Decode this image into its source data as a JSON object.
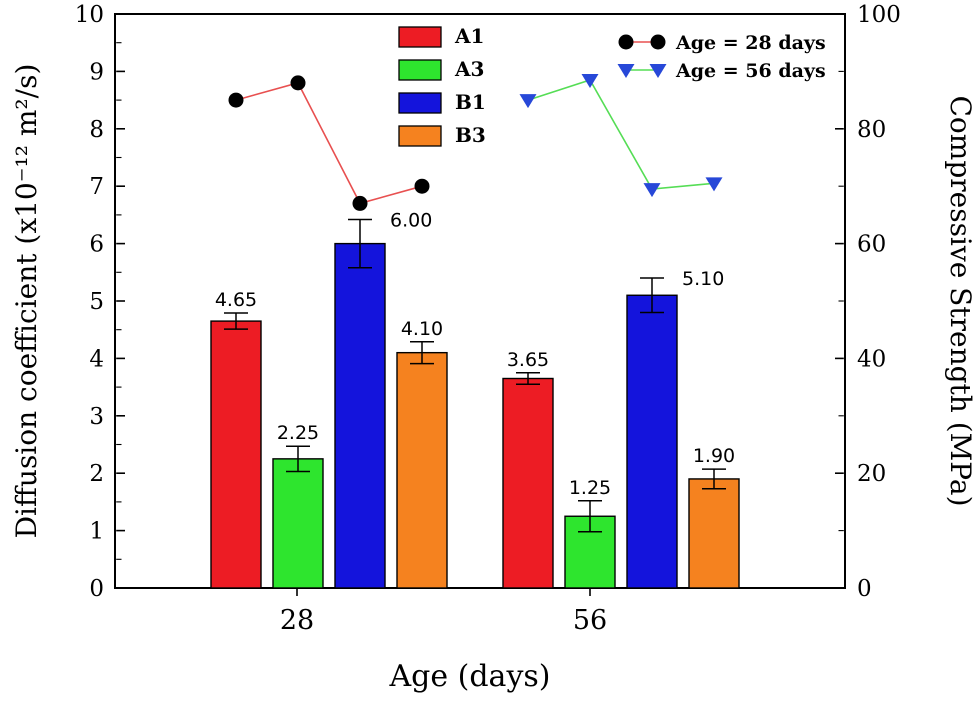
{
  "chart_data": {
    "type": "bar",
    "title": "",
    "xlabel": "Age (days)",
    "axes": {
      "left": {
        "label": "Diffusion coefficient (x10⁻¹² m²/s)",
        "min": 0,
        "max": 10,
        "tick_step": 1,
        "minor_step": 0.5
      },
      "right": {
        "label": "Compressive Strength (MPa)",
        "min": 0,
        "max": 100,
        "tick_step": 10,
        "label_step": 20
      },
      "x": {
        "categories": [
          "28",
          "56"
        ]
      }
    },
    "bar_series": [
      {
        "name": "A1",
        "color": "#ed1c24",
        "values": [
          4.65,
          3.65
        ],
        "errors": [
          0.14,
          0.1
        ],
        "labels": [
          "4.65",
          "3.65"
        ],
        "label_side": "above"
      },
      {
        "name": "A3",
        "color": "#2ee52e",
        "values": [
          2.25,
          1.25
        ],
        "errors": [
          0.22,
          0.27
        ],
        "labels": [
          "2.25",
          "1.25"
        ],
        "label_side": "above"
      },
      {
        "name": "B1",
        "color": "#1414dc",
        "values": [
          6.0,
          5.1
        ],
        "errors": [
          0.42,
          0.3
        ],
        "labels": [
          "6.00",
          "5.10"
        ],
        "label_side": "right"
      },
      {
        "name": "B3",
        "color": "#f5821f",
        "values": [
          4.1,
          1.9
        ],
        "errors": [
          0.19,
          0.17
        ],
        "labels": [
          "4.10",
          "1.90"
        ],
        "label_side": "above"
      }
    ],
    "line_series": [
      {
        "name": "Age = 28 days",
        "marker": "circle",
        "marker_color": "#000000",
        "line_color": "#e85050",
        "group": 0,
        "values": [
          85,
          88,
          67,
          70
        ]
      },
      {
        "name": "Age = 56 days",
        "marker": "triangle-down",
        "marker_color": "#2748d8",
        "line_color": "#55dd55",
        "group": 1,
        "values": [
          85,
          88.5,
          69.5,
          70.5
        ]
      }
    ]
  }
}
